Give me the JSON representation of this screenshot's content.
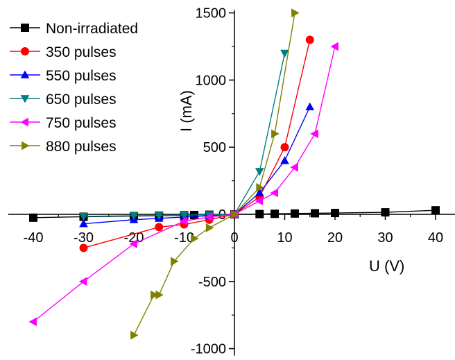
{
  "chart_data": {
    "type": "line",
    "xlabel": "U (V)",
    "ylabel": "I (mA)",
    "xlim": [
      -45,
      45
    ],
    "ylim": [
      -1000,
      1500
    ],
    "x_ticks": [
      -40,
      -30,
      -20,
      -10,
      0,
      10,
      20,
      30,
      40
    ],
    "y_ticks": [
      -1000,
      -500,
      500,
      1000,
      1500
    ],
    "y_zero_label": "0",
    "legend_position": "top-left",
    "axes_style": "crossing at origin",
    "grid": false,
    "series": [
      {
        "name": "Non-irradiated",
        "color": "#000000",
        "marker": "square",
        "x": [
          -40,
          -30,
          -20,
          -15,
          -10,
          -8,
          -5,
          0,
          5,
          8,
          12,
          16,
          20,
          30,
          40
        ],
        "y": [
          -25,
          -18,
          -13,
          -10,
          -7,
          -5,
          -3,
          0,
          2,
          4,
          6,
          8,
          10,
          15,
          30
        ]
      },
      {
        "name": "350 pulses",
        "color": "#ff0000",
        "marker": "circle",
        "x": [
          -30,
          -15,
          -10,
          -5,
          0,
          5,
          10,
          15
        ],
        "y": [
          -250,
          -95,
          -75,
          -40,
          0,
          130,
          500,
          1300
        ]
      },
      {
        "name": "550 pulses",
        "color": "#0000ff",
        "marker": "triangle-up",
        "x": [
          -30,
          -20,
          -15,
          -10,
          -5,
          0,
          5,
          10,
          15
        ],
        "y": [
          -70,
          -40,
          -30,
          -20,
          -10,
          0,
          160,
          400,
          800
        ]
      },
      {
        "name": "650 pulses",
        "color": "#008080",
        "marker": "triangle-down",
        "x": [
          -30,
          -20,
          -15,
          -10,
          -5,
          0,
          5,
          10
        ],
        "y": [
          -15,
          -10,
          -8,
          -5,
          -3,
          0,
          320,
          1200
        ]
      },
      {
        "name": "750 pulses",
        "color": "#ff00ff",
        "marker": "triangle-left",
        "x": [
          -40,
          -30,
          -20,
          -10,
          -5,
          0,
          5,
          8,
          12,
          16,
          20
        ],
        "y": [
          -800,
          -500,
          -220,
          -50,
          -20,
          0,
          100,
          160,
          350,
          600,
          1250
        ]
      },
      {
        "name": "880 pulses",
        "color": "#808000",
        "marker": "triangle-right",
        "x": [
          -20,
          -16,
          -15,
          -12,
          -8,
          -5,
          0,
          5,
          8,
          12
        ],
        "y": [
          -900,
          -600,
          -600,
          -350,
          -180,
          -100,
          0,
          200,
          600,
          1500
        ]
      }
    ]
  }
}
